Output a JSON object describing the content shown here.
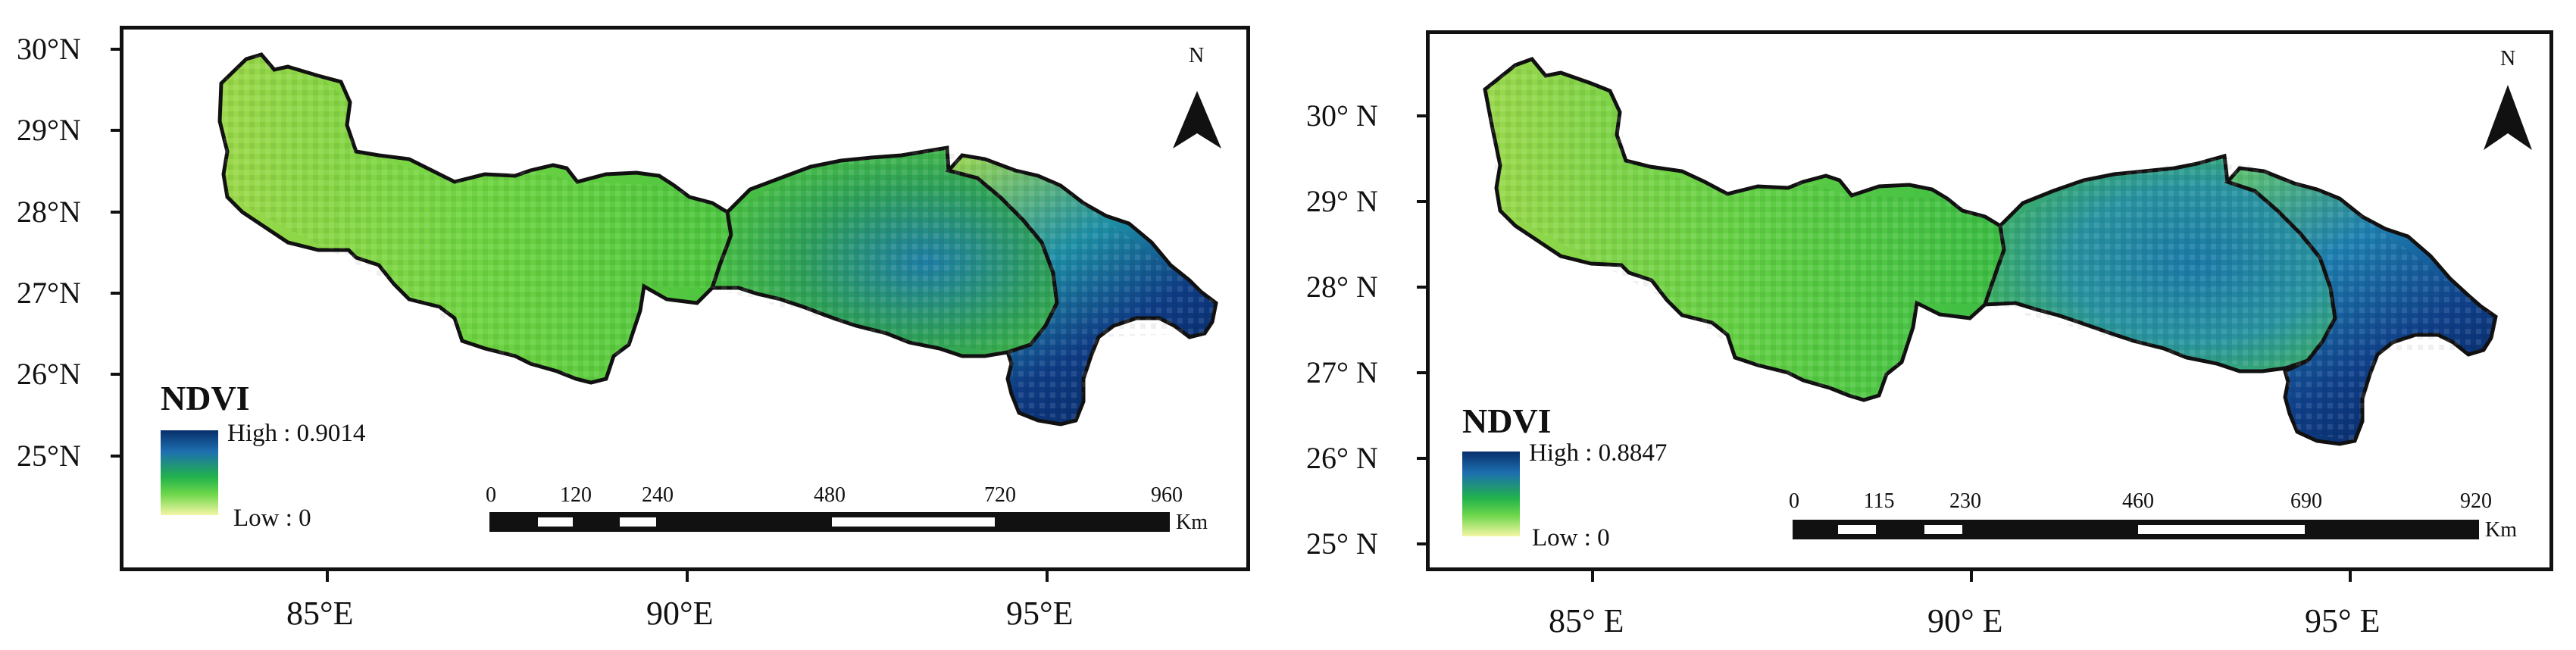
{
  "panels": [
    {
      "name": "left-map",
      "lat_labels": [
        "30°N",
        "29°N",
        "28°N",
        "27°N",
        "26°N",
        "25°N"
      ],
      "lon_labels": [
        "85°E",
        "90°E",
        "95°E"
      ],
      "north_label": "N",
      "legend": {
        "title": "NDVI",
        "high": "High : 0.9014",
        "low": "Low : 0"
      },
      "scalebar": {
        "labels": [
          "0",
          "120",
          "240",
          "480",
          "720",
          "960"
        ],
        "unit": "Km"
      }
    },
    {
      "name": "right-map",
      "lat_labels": [
        "30° N",
        "29° N",
        "28° N",
        "27° N",
        "26° N",
        "25° N"
      ],
      "lon_labels": [
        "85° E",
        "90° E",
        "95° E"
      ],
      "north_label": "N",
      "legend": {
        "title": "NDVI",
        "high": "High : 0.8847",
        "low": "Low : 0"
      },
      "scalebar": {
        "labels": [
          "0",
          "115",
          "230",
          "460",
          "690",
          "920"
        ],
        "unit": "Km"
      }
    }
  ],
  "colors": {
    "low": "#f4f6a6",
    "mid": "#22b24c",
    "high": "#08306b"
  }
}
